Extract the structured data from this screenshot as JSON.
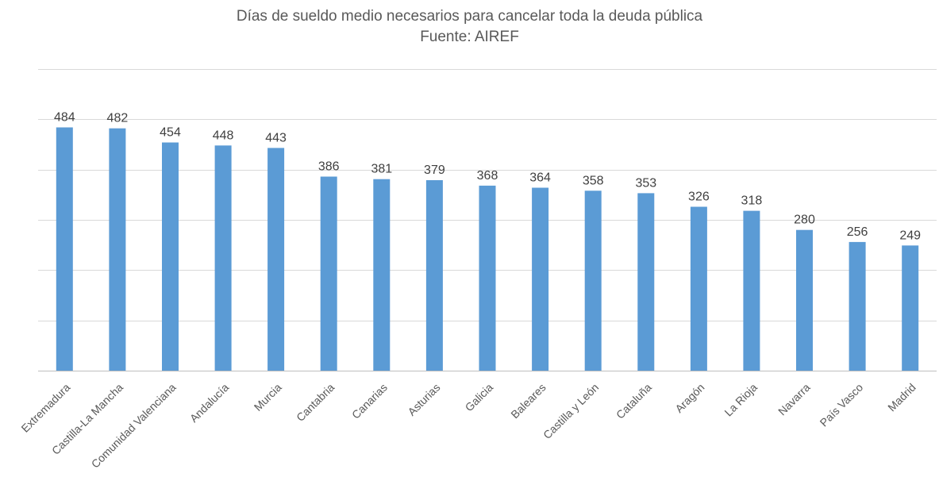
{
  "chart_data": {
    "type": "bar",
    "title": "Días de sueldo medio necesarios para cancelar toda la deuda pública",
    "subtitle": "Fuente: AIREF",
    "xlabel": "",
    "ylabel": "",
    "ylim": [
      0,
      600
    ],
    "y_gridlines": [
      0,
      100,
      200,
      300,
      400,
      500,
      600
    ],
    "grid": true,
    "show_y_tick_labels": false,
    "bar_color": "#5b9bd5",
    "categories": [
      "Extremadura",
      "Castilla-La Mancha",
      "Comunidad Valenciana",
      "Andalucía",
      "Murcia",
      "Cantabria",
      "Canarias",
      "Asturias",
      "Galicia",
      "Baleares",
      "Castilla y León",
      "Cataluña",
      "Aragón",
      "La Rioja",
      "Navarra",
      "País Vasco",
      "Madrid"
    ],
    "values": [
      484,
      482,
      454,
      448,
      443,
      386,
      381,
      379,
      368,
      364,
      358,
      353,
      326,
      318,
      280,
      256,
      249
    ]
  }
}
